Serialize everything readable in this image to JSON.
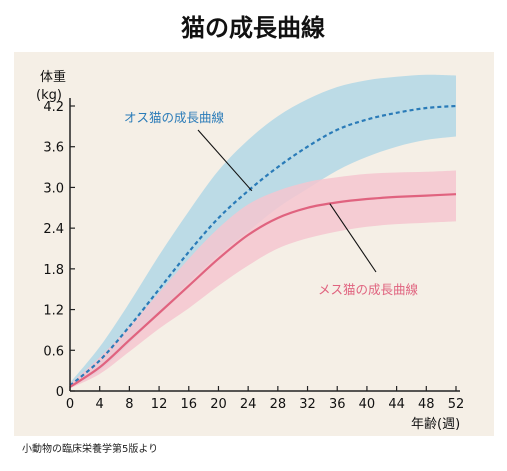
{
  "chart_data": {
    "type": "line",
    "title": "猫の成長曲線",
    "ylabel_line1": "体重",
    "ylabel_line2": "(kg)",
    "xlabel": "年齢(週)",
    "source": "小動物の臨床栄養学第5版より",
    "xlim": [
      0,
      52
    ],
    "ylim": [
      0,
      4.6
    ],
    "xticks": [
      0,
      4,
      8,
      12,
      16,
      20,
      24,
      28,
      32,
      36,
      40,
      44,
      48,
      52
    ],
    "xtick_labels": [
      "0",
      "4",
      "8",
      "12",
      "16",
      "20",
      "24",
      "28",
      "32",
      "36",
      "40",
      "44",
      "48",
      "52"
    ],
    "yticks": [
      0,
      0.6,
      1.2,
      1.8,
      2.4,
      3.0,
      3.6,
      4.2
    ],
    "ytick_labels": [
      "0",
      "0.6",
      "1.2",
      "1.8",
      "2.4",
      "3.0",
      "3.6",
      "4.2"
    ],
    "x": [
      0,
      4,
      8,
      12,
      16,
      20,
      24,
      28,
      32,
      36,
      40,
      44,
      48,
      52
    ],
    "series": [
      {
        "name": "オス猫の成長曲線",
        "style": "dashed",
        "color": "#2a7bb8",
        "band_color": "#bcdbe6",
        "values": [
          0.08,
          0.45,
          0.95,
          1.5,
          2.05,
          2.55,
          2.95,
          3.3,
          3.6,
          3.85,
          4.0,
          4.1,
          4.17,
          4.2
        ],
        "band_upper": [
          0.12,
          0.65,
          1.3,
          2.0,
          2.65,
          3.25,
          3.7,
          4.05,
          4.3,
          4.48,
          4.58,
          4.63,
          4.66,
          4.65
        ],
        "band_lower": [
          0.05,
          0.3,
          0.7,
          1.15,
          1.6,
          2.0,
          2.35,
          2.7,
          2.98,
          3.25,
          3.45,
          3.6,
          3.7,
          3.75
        ]
      },
      {
        "name": "メス猫の成長曲線",
        "style": "solid",
        "color": "#e0637f",
        "band_color": "#f5c5cf",
        "values": [
          0.06,
          0.35,
          0.75,
          1.15,
          1.55,
          1.95,
          2.3,
          2.55,
          2.7,
          2.78,
          2.83,
          2.86,
          2.88,
          2.9
        ],
        "band_upper": [
          0.1,
          0.5,
          0.95,
          1.45,
          1.95,
          2.4,
          2.75,
          2.95,
          3.08,
          3.15,
          3.2,
          3.22,
          3.23,
          3.25
        ],
        "band_lower": [
          0.04,
          0.25,
          0.58,
          0.92,
          1.22,
          1.55,
          1.85,
          2.1,
          2.25,
          2.35,
          2.42,
          2.46,
          2.48,
          2.5
        ]
      }
    ],
    "annotations": [
      {
        "text": "オス猫の成長曲線",
        "series": 0,
        "point_x": 24.5,
        "point_y": 2.95
      },
      {
        "text": "メス猫の成長曲線",
        "series": 1,
        "point_x": 35,
        "point_y": 2.76
      }
    ],
    "background_color": "#f5efe6",
    "grid": false,
    "legend": "none"
  }
}
